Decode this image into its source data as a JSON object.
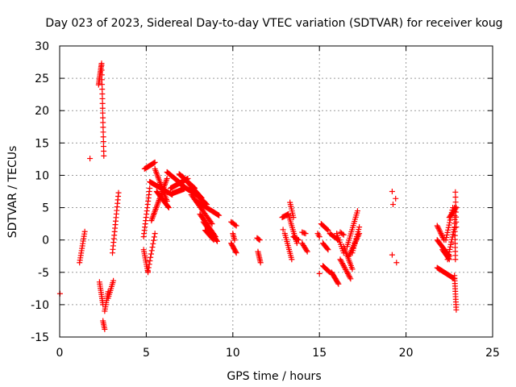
{
  "chart_data": {
    "type": "scatter",
    "title": "Day 023 of 2023, Sidereal Day-to-day VTEC variation (SDTVAR) for receiver koug",
    "xlabel": "GPS time / hours",
    "ylabel": "SDTVAR / TECUs",
    "xlim": [
      0,
      25
    ],
    "ylim": [
      -15,
      30
    ],
    "xticks": [
      0,
      5,
      10,
      15,
      20,
      25
    ],
    "yticks": [
      -15,
      -10,
      -5,
      0,
      5,
      10,
      15,
      20,
      25,
      30
    ],
    "xtick_labels": [
      "0",
      "5",
      "10",
      "15",
      "20",
      "25"
    ],
    "ytick_labels": [
      "-15",
      "-10",
      "-5",
      "0",
      "5",
      "10",
      "15",
      "20",
      "25",
      "30"
    ],
    "grid": true,
    "marker": "+",
    "color": "#ff0000",
    "series": [
      {
        "name": "SDTVAR",
        "segments": [
          {
            "t0": 0.02,
            "t1": 0.02,
            "v0": -8.3,
            "v1": -8.3,
            "n": 1
          },
          {
            "t0": 1.15,
            "t1": 1.45,
            "v0": -3.5,
            "v1": 1.3,
            "n": 14
          },
          {
            "t0": 1.75,
            "t1": 1.75,
            "v0": 12.6,
            "v1": 12.6,
            "n": 1
          },
          {
            "t0": 2.25,
            "t1": 2.42,
            "v0": 24.0,
            "v1": 27.3,
            "n": 14
          },
          {
            "t0": 2.42,
            "t1": 2.55,
            "v0": 27.0,
            "v1": 13.0,
            "n": 20
          },
          {
            "t0": 2.3,
            "t1": 2.5,
            "v0": -6.5,
            "v1": -10.0,
            "n": 12
          },
          {
            "t0": 2.5,
            "t1": 2.6,
            "v0": -12.5,
            "v1": -13.8,
            "n": 6
          },
          {
            "t0": 2.6,
            "t1": 2.8,
            "v0": -11.0,
            "v1": -8.0,
            "n": 10
          },
          {
            "t0": 2.8,
            "t1": 3.1,
            "v0": -9.0,
            "v1": -6.3,
            "n": 10
          },
          {
            "t0": 3.05,
            "t1": 3.4,
            "v0": -2.0,
            "v1": 7.3,
            "n": 18
          },
          {
            "t0": 4.85,
            "t1": 5.1,
            "v0": -1.5,
            "v1": -5.0,
            "n": 12
          },
          {
            "t0": 4.85,
            "t1": 5.2,
            "v0": 0.5,
            "v1": 8.0,
            "n": 16
          },
          {
            "t0": 4.9,
            "t1": 5.5,
            "v0": 11.0,
            "v1": 12.0,
            "n": 14
          },
          {
            "t0": 5.1,
            "t1": 5.5,
            "v0": -4.8,
            "v1": 1.0,
            "n": 12
          },
          {
            "t0": 5.3,
            "t1": 6.2,
            "v0": 3.0,
            "v1": 9.5,
            "n": 30
          },
          {
            "t0": 5.5,
            "t1": 6.2,
            "v0": 11.0,
            "v1": 6.0,
            "n": 22
          },
          {
            "t0": 5.2,
            "t1": 6.5,
            "v0": 9.0,
            "v1": 7.0,
            "n": 30
          },
          {
            "t0": 5.6,
            "t1": 6.3,
            "v0": 7.5,
            "v1": 5.0,
            "n": 20
          },
          {
            "t0": 6.2,
            "t1": 7.1,
            "v0": 10.5,
            "v1": 8.5,
            "n": 24
          },
          {
            "t0": 6.4,
            "t1": 7.4,
            "v0": 8.0,
            "v1": 9.5,
            "n": 24
          },
          {
            "t0": 6.5,
            "t1": 7.2,
            "v0": 7.2,
            "v1": 7.9,
            "n": 18
          },
          {
            "t0": 6.9,
            "t1": 7.8,
            "v0": 10.2,
            "v1": 8.0,
            "n": 26
          },
          {
            "t0": 7.1,
            "t1": 8.2,
            "v0": 9.8,
            "v1": 6.5,
            "n": 28
          },
          {
            "t0": 7.0,
            "t1": 7.9,
            "v0": 8.5,
            "v1": 7.0,
            "n": 24
          },
          {
            "t0": 7.5,
            "t1": 8.5,
            "v0": 8.0,
            "v1": 5.5,
            "n": 24
          },
          {
            "t0": 7.6,
            "t1": 8.8,
            "v0": 7.0,
            "v1": 2.5,
            "n": 26
          },
          {
            "t0": 7.9,
            "t1": 9.2,
            "v0": 6.0,
            "v1": 3.8,
            "n": 28
          },
          {
            "t0": 8.1,
            "t1": 9.0,
            "v0": 4.0,
            "v1": 0.5,
            "n": 22
          },
          {
            "t0": 8.3,
            "t1": 9.1,
            "v0": 2.8,
            "v1": -0.2,
            "n": 20
          },
          {
            "t0": 8.4,
            "t1": 8.9,
            "v0": 1.5,
            "v1": 0.0,
            "n": 12
          },
          {
            "t0": 9.9,
            "t1": 10.2,
            "v0": 2.8,
            "v1": 2.2,
            "n": 6
          },
          {
            "t0": 9.9,
            "t1": 10.2,
            "v0": -0.5,
            "v1": -2.0,
            "n": 10
          },
          {
            "t0": 10.0,
            "t1": 10.1,
            "v0": 1.0,
            "v1": 0.0,
            "n": 5
          },
          {
            "t0": 11.4,
            "t1": 11.55,
            "v0": 0.3,
            "v1": 0.0,
            "n": 4
          },
          {
            "t0": 11.45,
            "t1": 11.6,
            "v0": -1.8,
            "v1": -3.5,
            "n": 8
          },
          {
            "t0": 12.85,
            "t1": 13.2,
            "v0": 3.5,
            "v1": 4.0,
            "n": 8
          },
          {
            "t0": 13.0,
            "t1": 13.4,
            "v0": 1.0,
            "v1": -3.0,
            "n": 14
          },
          {
            "t0": 13.2,
            "t1": 13.7,
            "v0": 4.0,
            "v1": -0.5,
            "n": 16
          },
          {
            "t0": 13.3,
            "t1": 13.5,
            "v0": 5.8,
            "v1": 3.5,
            "n": 8
          },
          {
            "t0": 13.5,
            "t1": 13.8,
            "v0": 0.5,
            "v1": 0.0,
            "n": 6
          },
          {
            "t0": 12.9,
            "t1": 12.9,
            "v0": 1.6,
            "v1": 1.6,
            "n": 1
          },
          {
            "t0": 14.0,
            "t1": 14.3,
            "v0": -0.5,
            "v1": -1.8,
            "n": 8
          },
          {
            "t0": 14.0,
            "t1": 14.2,
            "v0": 1.2,
            "v1": 1.0,
            "n": 4
          },
          {
            "t0": 14.9,
            "t1": 15.0,
            "v0": 1.0,
            "v1": 0.5,
            "n": 3
          },
          {
            "t0": 15.0,
            "t1": 15.0,
            "v0": -5.2,
            "v1": -5.2,
            "n": 1
          },
          {
            "t0": 15.1,
            "t1": 15.5,
            "v0": 2.5,
            "v1": 1.5,
            "n": 8
          },
          {
            "t0": 15.2,
            "t1": 15.5,
            "v0": -0.5,
            "v1": -1.5,
            "n": 8
          },
          {
            "t0": 15.2,
            "t1": 15.6,
            "v0": -4.0,
            "v1": -5.0,
            "n": 10
          },
          {
            "t0": 15.6,
            "t1": 16.1,
            "v0": 1.0,
            "v1": 0.0,
            "n": 10
          },
          {
            "t0": 15.7,
            "t1": 16.1,
            "v0": -5.0,
            "v1": -6.8,
            "n": 12
          },
          {
            "t0": 16.0,
            "t1": 16.4,
            "v0": 1.0,
            "v1": -2.0,
            "n": 10
          },
          {
            "t0": 16.2,
            "t1": 16.8,
            "v0": -3.0,
            "v1": -6.0,
            "n": 16
          },
          {
            "t0": 16.4,
            "t1": 16.9,
            "v0": -1.0,
            "v1": -4.5,
            "n": 14
          },
          {
            "t0": 16.6,
            "t1": 17.2,
            "v0": -1.0,
            "v1": 4.5,
            "n": 18
          },
          {
            "t0": 16.7,
            "t1": 17.3,
            "v0": -2.5,
            "v1": 1.0,
            "n": 16
          },
          {
            "t0": 16.9,
            "t1": 17.3,
            "v0": -2.0,
            "v1": 2.0,
            "n": 12
          },
          {
            "t0": 16.2,
            "t1": 16.4,
            "v0": 1.2,
            "v1": 0.8,
            "n": 4
          },
          {
            "t0": 19.2,
            "t1": 19.25,
            "v0": 7.5,
            "v1": 5.5,
            "n": 2
          },
          {
            "t0": 19.4,
            "t1": 19.4,
            "v0": 6.4,
            "v1": 6.4,
            "n": 1
          },
          {
            "t0": 19.2,
            "t1": 19.2,
            "v0": -2.3,
            "v1": -2.3,
            "n": 1
          },
          {
            "t0": 19.45,
            "t1": 19.45,
            "v0": -3.5,
            "v1": -3.5,
            "n": 1
          },
          {
            "t0": 21.8,
            "t1": 22.2,
            "v0": 2.2,
            "v1": 0.0,
            "n": 12
          },
          {
            "t0": 21.8,
            "t1": 22.5,
            "v0": 0.0,
            "v1": -2.5,
            "n": 18
          },
          {
            "t0": 22.1,
            "t1": 22.5,
            "v0": -1.5,
            "v1": -3.0,
            "n": 10
          },
          {
            "t0": 21.8,
            "t1": 22.8,
            "v0": -4.3,
            "v1": -6.0,
            "n": 22
          },
          {
            "t0": 22.3,
            "t1": 22.7,
            "v0": 0.0,
            "v1": 5.0,
            "n": 14
          },
          {
            "t0": 22.4,
            "t1": 22.8,
            "v0": -3.0,
            "v1": 2.0,
            "n": 14
          },
          {
            "t0": 22.5,
            "t1": 22.9,
            "v0": 3.5,
            "v1": 5.0,
            "n": 10
          },
          {
            "t0": 22.8,
            "t1": 22.85,
            "v0": 5.0,
            "v1": -3.0,
            "n": 14
          },
          {
            "t0": 22.85,
            "t1": 22.9,
            "v0": 7.4,
            "v1": 2.0,
            "n": 8
          },
          {
            "t0": 22.8,
            "t1": 22.9,
            "v0": -5.5,
            "v1": -10.8,
            "n": 14
          }
        ]
      }
    ]
  }
}
